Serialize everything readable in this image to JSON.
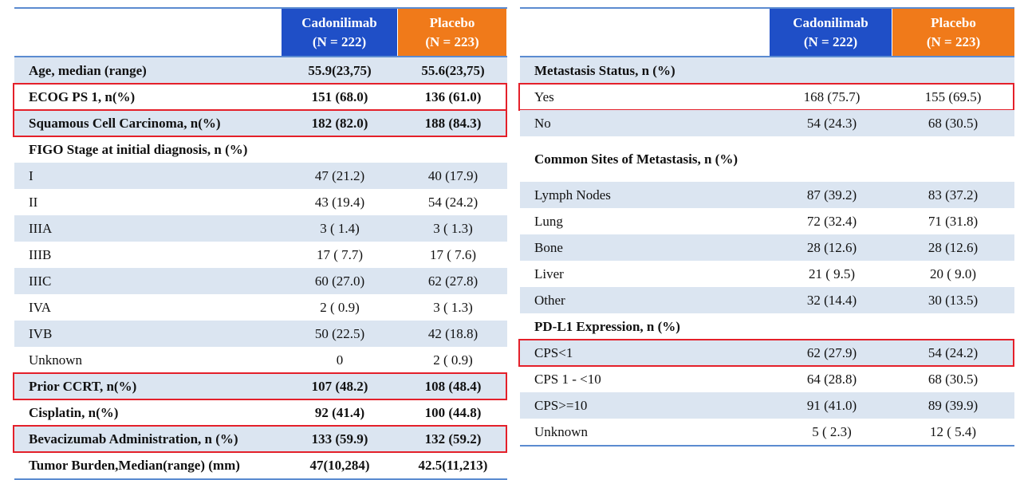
{
  "left_table": {
    "header": {
      "col1": [
        "Cadonilimab",
        "(N = 222)"
      ],
      "col2": [
        "Placebo",
        "(N = 223)"
      ]
    },
    "rows": [
      {
        "label": "Age, median (range)",
        "c1": "55.9(23,75)",
        "c2": "55.6(23,75)",
        "bold": true,
        "shade": true
      },
      {
        "label": "ECOG PS 1, n(%)",
        "c1": "151 (68.0)",
        "c2": "136 (61.0)",
        "bold": true,
        "shade": false,
        "highlight": true
      },
      {
        "label": "Squamous Cell Carcinoma, n(%)",
        "c1": "182 (82.0)",
        "c2": "188 (84.3)",
        "bold": true,
        "shade": true,
        "highlight": true
      },
      {
        "label": "FIGO Stage at initial diagnosis, n (%)",
        "c1": "",
        "c2": "",
        "bold": true,
        "shade": false
      },
      {
        "label": "I",
        "c1": "47 (21.2)",
        "c2": "40 (17.9)",
        "bold": false,
        "shade": true
      },
      {
        "label": "II",
        "c1": "43 (19.4)",
        "c2": "54 (24.2)",
        "bold": false,
        "shade": false
      },
      {
        "label": "IIIA",
        "c1": "3 ( 1.4)",
        "c2": "3 ( 1.3)",
        "bold": false,
        "shade": true
      },
      {
        "label": "IIIB",
        "c1": "17 ( 7.7)",
        "c2": "17 ( 7.6)",
        "bold": false,
        "shade": false
      },
      {
        "label": "IIIC",
        "c1": "60 (27.0)",
        "c2": "62 (27.8)",
        "bold": false,
        "shade": true
      },
      {
        "label": "IVA",
        "c1": "2 ( 0.9)",
        "c2": "3 ( 1.3)",
        "bold": false,
        "shade": false
      },
      {
        "label": "IVB",
        "c1": "50 (22.5)",
        "c2": "42 (18.8)",
        "bold": false,
        "shade": true
      },
      {
        "label": "Unknown",
        "c1": "0",
        "c2": "2 ( 0.9)",
        "bold": false,
        "shade": false
      },
      {
        "label": "Prior CCRT, n(%)",
        "c1": "107 (48.2)",
        "c2": "108 (48.4)",
        "bold": true,
        "shade": true,
        "highlight": true
      },
      {
        "label": "Cisplatin, n(%)",
        "c1": "92 (41.4)",
        "c2": "100 (44.8)",
        "bold": true,
        "shade": false
      },
      {
        "label": "Bevacizumab Administration, n (%)",
        "c1": "133 (59.9)",
        "c2": "132 (59.2)",
        "bold": true,
        "shade": true,
        "highlight": true
      },
      {
        "label": "Tumor Burden,Median(range) (mm)",
        "c1": "47(10,284)",
        "c2": "42.5(11,213)",
        "bold": true,
        "shade": false
      }
    ]
  },
  "right_table": {
    "header": {
      "col1": [
        "Cadonilimab",
        "(N = 222)"
      ],
      "col2": [
        "Placebo",
        "(N = 223)"
      ]
    },
    "rows": [
      {
        "label": "Metastasis Status, n (%)",
        "c1": "",
        "c2": "",
        "bold": true,
        "shade": true
      },
      {
        "label": "Yes",
        "c1": "168 (75.7)",
        "c2": "155 (69.5)",
        "bold": false,
        "shade": false,
        "highlight": true
      },
      {
        "label": "No",
        "c1": "54 (24.3)",
        "c2": "68 (30.5)",
        "bold": false,
        "shade": true
      },
      {
        "label": "Common Sites of Metastasis, n (%)",
        "c1": "",
        "c2": "",
        "bold": true,
        "shade": false
      },
      {
        "label": "Lymph Nodes",
        "c1": "87 (39.2)",
        "c2": "83 (37.2)",
        "bold": false,
        "shade": true
      },
      {
        "label": "Lung",
        "c1": "72 (32.4)",
        "c2": "71 (31.8)",
        "bold": false,
        "shade": false
      },
      {
        "label": "Bone",
        "c1": "28 (12.6)",
        "c2": "28 (12.6)",
        "bold": false,
        "shade": true
      },
      {
        "label": "Liver",
        "c1": "21 ( 9.5)",
        "c2": "20 ( 9.0)",
        "bold": false,
        "shade": false
      },
      {
        "label": "Other",
        "c1": "32 (14.4)",
        "c2": "30 (13.5)",
        "bold": false,
        "shade": true
      },
      {
        "label": "PD-L1 Expression, n (%)",
        "c1": "",
        "c2": "",
        "bold": true,
        "shade": false
      },
      {
        "label": "CPS<1",
        "c1": "62 (27.9)",
        "c2": "54 (24.2)",
        "bold": false,
        "shade": true,
        "highlight": true
      },
      {
        "label": "CPS  1 - <10",
        "c1": "64 (28.8)",
        "c2": "68 (30.5)",
        "bold": false,
        "shade": false
      },
      {
        "label": "CPS>=10",
        "c1": "91 (41.0)",
        "c2": "89 (39.9)",
        "bold": false,
        "shade": true
      },
      {
        "label": "Unknown",
        "c1": "5 ( 2.3)",
        "c2": "12 ( 5.4)",
        "bold": false,
        "shade": false
      }
    ]
  }
}
